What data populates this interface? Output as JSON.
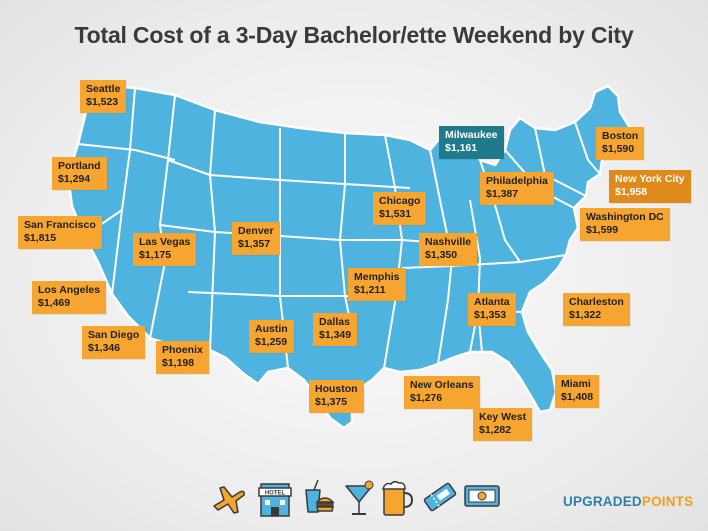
{
  "title": "Total Cost of a 3-Day Bachelor/ette Weekend by City",
  "colors": {
    "map": "#4fb3df",
    "state_border": "#ffffff",
    "label": "#f7a531",
    "label_dark": "#1f7a8c",
    "label_accent": "#e08a1c"
  },
  "cities": [
    {
      "id": "seattle",
      "name": "Seattle",
      "cost": "$1,523",
      "style": "normal"
    },
    {
      "id": "portland",
      "name": "Portland",
      "cost": "$1,294",
      "style": "normal"
    },
    {
      "id": "san-francisco",
      "name": "San Francisco",
      "cost": "$1,815",
      "style": "normal"
    },
    {
      "id": "los-angeles",
      "name": "Los Angeles",
      "cost": "$1,469",
      "style": "normal"
    },
    {
      "id": "san-diego",
      "name": "San Diego",
      "cost": "$1,346",
      "style": "normal"
    },
    {
      "id": "las-vegas",
      "name": "Las Vegas",
      "cost": "$1,175",
      "style": "normal"
    },
    {
      "id": "phoenix",
      "name": "Phoenix",
      "cost": "$1,198",
      "style": "normal"
    },
    {
      "id": "denver",
      "name": "Denver",
      "cost": "$1,357",
      "style": "normal"
    },
    {
      "id": "austin",
      "name": "Austin",
      "cost": "$1,259",
      "style": "normal"
    },
    {
      "id": "dallas",
      "name": "Dallas",
      "cost": "$1,349",
      "style": "normal"
    },
    {
      "id": "houston",
      "name": "Houston",
      "cost": "$1,375",
      "style": "normal"
    },
    {
      "id": "memphis",
      "name": "Memphis",
      "cost": "$1,211",
      "style": "normal"
    },
    {
      "id": "chicago",
      "name": "Chicago",
      "cost": "$1,531",
      "style": "normal"
    },
    {
      "id": "milwaukee",
      "name": "Milwaukee",
      "cost": "$1,161",
      "style": "dark"
    },
    {
      "id": "nashville",
      "name": "Nashville",
      "cost": "$1,350",
      "style": "normal"
    },
    {
      "id": "new-orleans",
      "name": "New Orleans",
      "cost": "$1,276",
      "style": "normal"
    },
    {
      "id": "atlanta",
      "name": "Atlanta",
      "cost": "$1,353",
      "style": "normal"
    },
    {
      "id": "philadelphia",
      "name": "Philadelphia",
      "cost": "$1,387",
      "style": "normal"
    },
    {
      "id": "boston",
      "name": "Boston",
      "cost": "$1,590",
      "style": "normal"
    },
    {
      "id": "new-york-city",
      "name": "New York City",
      "cost": "$1,958",
      "style": "accent"
    },
    {
      "id": "washington-dc",
      "name": "Washington DC",
      "cost": "$1,599",
      "style": "normal"
    },
    {
      "id": "charleston",
      "name": "Charleston",
      "cost": "$1,322",
      "style": "normal"
    },
    {
      "id": "miami",
      "name": "Miami",
      "cost": "$1,408",
      "style": "normal"
    },
    {
      "id": "key-west",
      "name": "Key West",
      "cost": "$1,282",
      "style": "normal"
    }
  ],
  "icons": [
    "airplane-icon",
    "hotel-icon",
    "food-drink-icon",
    "cocktail-icon",
    "beer-mug-icon",
    "ticket-icon",
    "money-icon"
  ],
  "brand": {
    "part1": "UPGRADED",
    "part2": "POINTS"
  }
}
